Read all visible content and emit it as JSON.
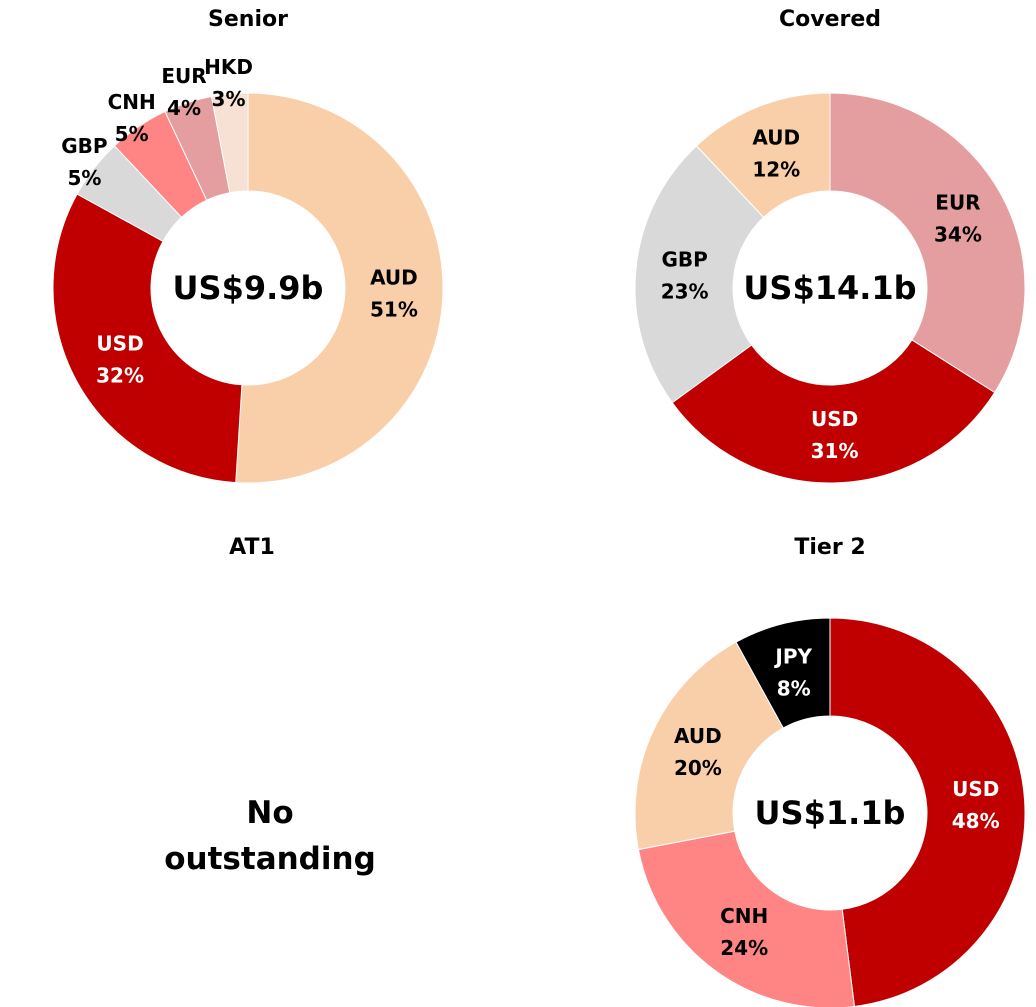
{
  "chart_data": [
    {
      "type": "pie",
      "title": "Senior",
      "center_label": "US$9.9b",
      "categories": [
        "AUD",
        "USD",
        "GBP",
        "CNH",
        "EUR",
        "HKD"
      ],
      "values": [
        51,
        32,
        5,
        5,
        4,
        3
      ],
      "value_labels": [
        "51%",
        "32%",
        "5%",
        "5%",
        "4%",
        "3%"
      ],
      "colors": [
        "#f8cfa8",
        "#c00000",
        "#d9d9d9",
        "#ff8585",
        "#e59ea0",
        "#f6e1d4"
      ]
    },
    {
      "type": "pie",
      "title": "Covered",
      "center_label": "US$14.1b",
      "categories": [
        "EUR",
        "USD",
        "GBP",
        "AUD"
      ],
      "values": [
        34,
        31,
        23,
        12
      ],
      "value_labels": [
        "34%",
        "31%",
        "23%",
        "12%"
      ],
      "colors": [
        "#e59ea0",
        "#c00000",
        "#d9d9d9",
        "#f8cfa8"
      ]
    },
    {
      "type": "pie",
      "title": "AT1",
      "annotation": "No outstanding"
    },
    {
      "type": "pie",
      "title": "Tier 2",
      "center_label": "US$1.1b",
      "categories": [
        "USD",
        "CNH",
        "AUD",
        "JPY"
      ],
      "values": [
        48,
        24,
        20,
        8
      ],
      "value_labels": [
        "48%",
        "24%",
        "20%",
        "8%"
      ],
      "colors": [
        "#c00000",
        "#ff8585",
        "#f8cfa8",
        "#000000"
      ]
    }
  ]
}
